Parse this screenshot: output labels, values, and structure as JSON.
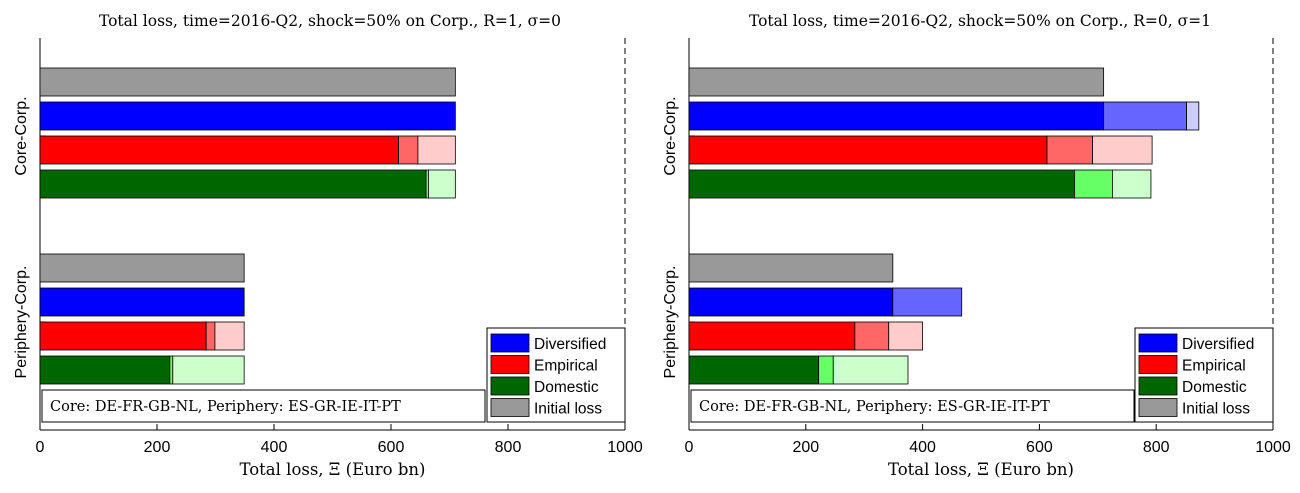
{
  "legend": {
    "entries": [
      {
        "label": "Diversified",
        "color": "#0000ff"
      },
      {
        "label": "Empirical",
        "color": "#ff0000"
      },
      {
        "label": "Domestic",
        "color": "#006600"
      },
      {
        "label": "Initial loss",
        "color": "#999999"
      }
    ]
  },
  "chart_data": [
    {
      "type": "bar",
      "orientation": "horizontal",
      "stacked": true,
      "title": "Total loss, time=2016-Q2, shock=50% on Corp., R=1, σ=0",
      "xlabel": "Total loss, Ξ (Euro bn)",
      "xlim": [
        0,
        1000
      ],
      "xticks": [
        "0",
        "200",
        "400",
        "600",
        "800",
        "1000"
      ],
      "reference_line_x": 1000,
      "annotation": "Core: DE-FR-GB-NL, Periphery: ES-GR-IE-IT-PT",
      "groups": [
        {
          "label": "Core-Corp.",
          "bars": [
            {
              "series": "Initial loss",
              "segments": [
                710
              ]
            },
            {
              "series": "Diversified",
              "segments": [
                710,
                0,
                0
              ]
            },
            {
              "series": "Empirical",
              "segments": [
                613,
                33,
                64
              ]
            },
            {
              "series": "Domestic",
              "segments": [
                660,
                4,
                46
              ]
            }
          ]
        },
        {
          "label": "Periphery-Corp.",
          "bars": [
            {
              "series": "Initial loss",
              "segments": [
                349
              ]
            },
            {
              "series": "Diversified",
              "segments": [
                349,
                0,
                0
              ]
            },
            {
              "series": "Empirical",
              "segments": [
                284,
                15,
                50
              ]
            },
            {
              "series": "Domestic",
              "segments": [
                222,
                5,
                122
              ]
            }
          ]
        }
      ]
    },
    {
      "type": "bar",
      "orientation": "horizontal",
      "stacked": true,
      "title": "Total loss, time=2016-Q2, shock=50% on Corp., R=0, σ=1",
      "xlabel": "Total loss, Ξ (Euro bn)",
      "xlim": [
        0,
        1000
      ],
      "xticks": [
        "0",
        "200",
        "400",
        "600",
        "800",
        "1000"
      ],
      "reference_line_x": 1000,
      "annotation": "Core: DE-FR-GB-NL, Periphery: ES-GR-IE-IT-PT",
      "groups": [
        {
          "label": "Core-Corp.",
          "bars": [
            {
              "series": "Initial loss",
              "segments": [
                710
              ]
            },
            {
              "series": "Diversified",
              "segments": [
                710,
                142,
                21
              ]
            },
            {
              "series": "Empirical",
              "segments": [
                613,
                78,
                102
              ]
            },
            {
              "series": "Domestic",
              "segments": [
                660,
                65,
                66
              ]
            }
          ]
        },
        {
          "label": "Periphery-Corp.",
          "bars": [
            {
              "series": "Initial loss",
              "segments": [
                349
              ]
            },
            {
              "series": "Diversified",
              "segments": [
                349,
                118
              ]
            },
            {
              "series": "Empirical",
              "segments": [
                284,
                58,
                58
              ]
            },
            {
              "series": "Domestic",
              "segments": [
                222,
                25,
                128
              ]
            }
          ]
        }
      ]
    }
  ],
  "colors": {
    "Initial loss": [
      "#999999"
    ],
    "Diversified": [
      "#0000ff",
      "#6666ff",
      "#ccccff"
    ],
    "Empirical": [
      "#ff0000",
      "#ff6666",
      "#ffcccc"
    ],
    "Domestic": [
      "#006600",
      "#66ff66",
      "#ccffcc"
    ]
  }
}
